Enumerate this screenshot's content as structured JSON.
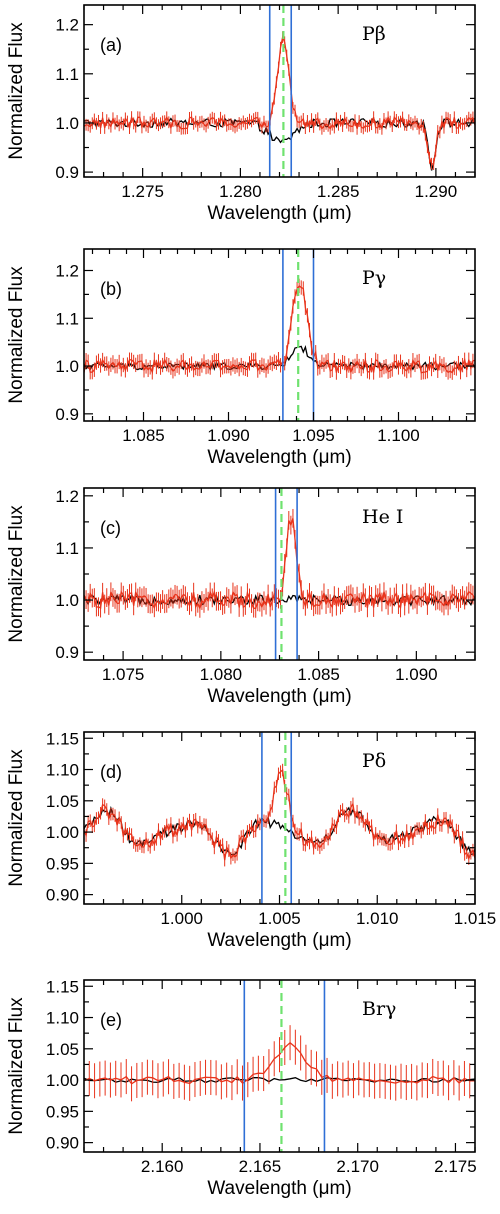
{
  "chart_data": [
    {
      "type": "line",
      "panel_label": "(a)",
      "line_label": "Pβ",
      "xlabel": "Wavelength (μm)",
      "ylabel": "Normalized Flux",
      "xlim": [
        1.272,
        1.292
      ],
      "ylim": [
        0.89,
        1.24
      ],
      "xticks": [
        1.275,
        1.28,
        1.285,
        1.29
      ],
      "xtick_labels": [
        "1.275",
        "1.280",
        "1.285",
        "1.290"
      ],
      "yticks": [
        0.9,
        1.0,
        1.1,
        1.2
      ],
      "ytick_labels": [
        "0.9",
        "1.0",
        "1.1",
        "1.2"
      ],
      "blue_lines": [
        1.2815,
        1.2826
      ],
      "green_line": 1.2822,
      "line_profile": {
        "center": 1.2822,
        "height": 0.17,
        "width": 0.00028
      },
      "black_dip": {
        "center": 1.2821,
        "depth": 0.04,
        "width": 0.0006
      },
      "noise_red": 0.012,
      "noise_black": 0.009,
      "errbar": 0.012,
      "deep_dip": {
        "center": 1.2898,
        "depth": 0.09,
        "width": 0.00018
      },
      "series": [
        {
          "name": "",
          "color": "#e8341c"
        },
        {
          "name": "",
          "color": "#000000"
        }
      ]
    },
    {
      "type": "line",
      "panel_label": "(b)",
      "line_label": "Pγ",
      "xlabel": "Wavelength (μm)",
      "ylabel": "Normalized Flux",
      "xlim": [
        1.0815,
        1.1045
      ],
      "ylim": [
        0.885,
        1.245
      ],
      "xticks": [
        1.085,
        1.09,
        1.095,
        1.1
      ],
      "xtick_labels": [
        "1.085",
        "1.090",
        "1.095",
        "1.100"
      ],
      "yticks": [
        0.9,
        1.0,
        1.1,
        1.2
      ],
      "ytick_labels": [
        "0.9",
        "1.0",
        "1.1",
        "1.2"
      ],
      "blue_lines": [
        1.0932,
        1.095
      ],
      "green_line": 1.0941,
      "line_profile": {
        "center": 1.0942,
        "height": 0.18,
        "width": 0.00042
      },
      "black_bump": {
        "center": 1.0942,
        "height": 0.04,
        "width": 0.0005
      },
      "noise_red": 0.014,
      "noise_black": 0.008,
      "errbar": 0.015,
      "series": [
        {
          "name": "",
          "color": "#e8341c"
        },
        {
          "name": "",
          "color": "#000000"
        }
      ]
    },
    {
      "type": "line",
      "panel_label": "(c)",
      "line_label": "He I",
      "xlabel": "Wavelength (μm)",
      "ylabel": "Normalized Flux",
      "xlim": [
        1.073,
        1.093
      ],
      "ylim": [
        0.885,
        1.215
      ],
      "xticks": [
        1.075,
        1.08,
        1.085,
        1.09
      ],
      "xtick_labels": [
        "1.075",
        "1.080",
        "1.085",
        "1.090"
      ],
      "yticks": [
        0.9,
        1.0,
        1.1,
        1.2
      ],
      "ytick_labels": [
        "0.9",
        "1.0",
        "1.1",
        "1.2"
      ],
      "blue_lines": [
        1.0828,
        1.0839
      ],
      "green_line": 1.0831,
      "line_profile": {
        "center": 1.0836,
        "height": 0.16,
        "width": 0.00025
      },
      "noise_red": 0.016,
      "noise_black": 0.01,
      "errbar": 0.018,
      "series": [
        {
          "name": "",
          "color": "#e8341c"
        },
        {
          "name": "",
          "color": "#000000"
        }
      ]
    },
    {
      "type": "line",
      "panel_label": "(d)",
      "line_label": "Pδ",
      "xlabel": "Wavelength (μm)",
      "ylabel": "Normalized Flux",
      "xlim": [
        0.995,
        1.015
      ],
      "ylim": [
        0.885,
        1.16
      ],
      "xticks": [
        1.0,
        1.005,
        1.01,
        1.015
      ],
      "xtick_labels": [
        "1.000",
        "1.005",
        "1.010",
        "1.015"
      ],
      "yticks": [
        0.9,
        0.95,
        1.0,
        1.05,
        1.1,
        1.15
      ],
      "ytick_labels": [
        "0.90",
        "0.95",
        "1.00",
        "1.05",
        "1.10",
        "1.15"
      ],
      "blue_lines": [
        1.0041,
        1.0056
      ],
      "green_line": 1.0053,
      "line_profile": {
        "center": 1.0051,
        "height": 0.085,
        "width": 0.00035
      },
      "wave_amp": 0.035,
      "noise_red": 0.012,
      "noise_black": 0.008,
      "errbar": 0.01,
      "series": [
        {
          "name": "",
          "color": "#e8341c"
        },
        {
          "name": "",
          "color": "#000000"
        }
      ]
    },
    {
      "type": "line",
      "panel_label": "(e)",
      "line_label": "Brγ",
      "xlabel": "Wavelength (μm)",
      "ylabel": "Normalized Flux",
      "xlim": [
        2.156,
        2.176
      ],
      "ylim": [
        0.885,
        1.16
      ],
      "xticks": [
        2.16,
        2.165,
        2.17,
        2.175
      ],
      "xtick_labels": [
        "2.160",
        "2.165",
        "2.170",
        "2.175"
      ],
      "yticks": [
        0.9,
        0.95,
        1.0,
        1.05,
        1.1,
        1.15
      ],
      "ytick_labels": [
        "0.90",
        "0.95",
        "1.00",
        "1.05",
        "1.10",
        "1.15"
      ],
      "blue_lines": [
        2.1642,
        2.1683
      ],
      "green_line": 2.1661,
      "line_profile": {
        "center": 2.1665,
        "height": 0.055,
        "width": 0.0008
      },
      "noise_red": 0.006,
      "noise_black": 0.004,
      "errbar": 0.028,
      "sparse": true,
      "series": [
        {
          "name": "",
          "color": "#e8341c"
        },
        {
          "name": "",
          "color": "#000000"
        }
      ]
    }
  ]
}
